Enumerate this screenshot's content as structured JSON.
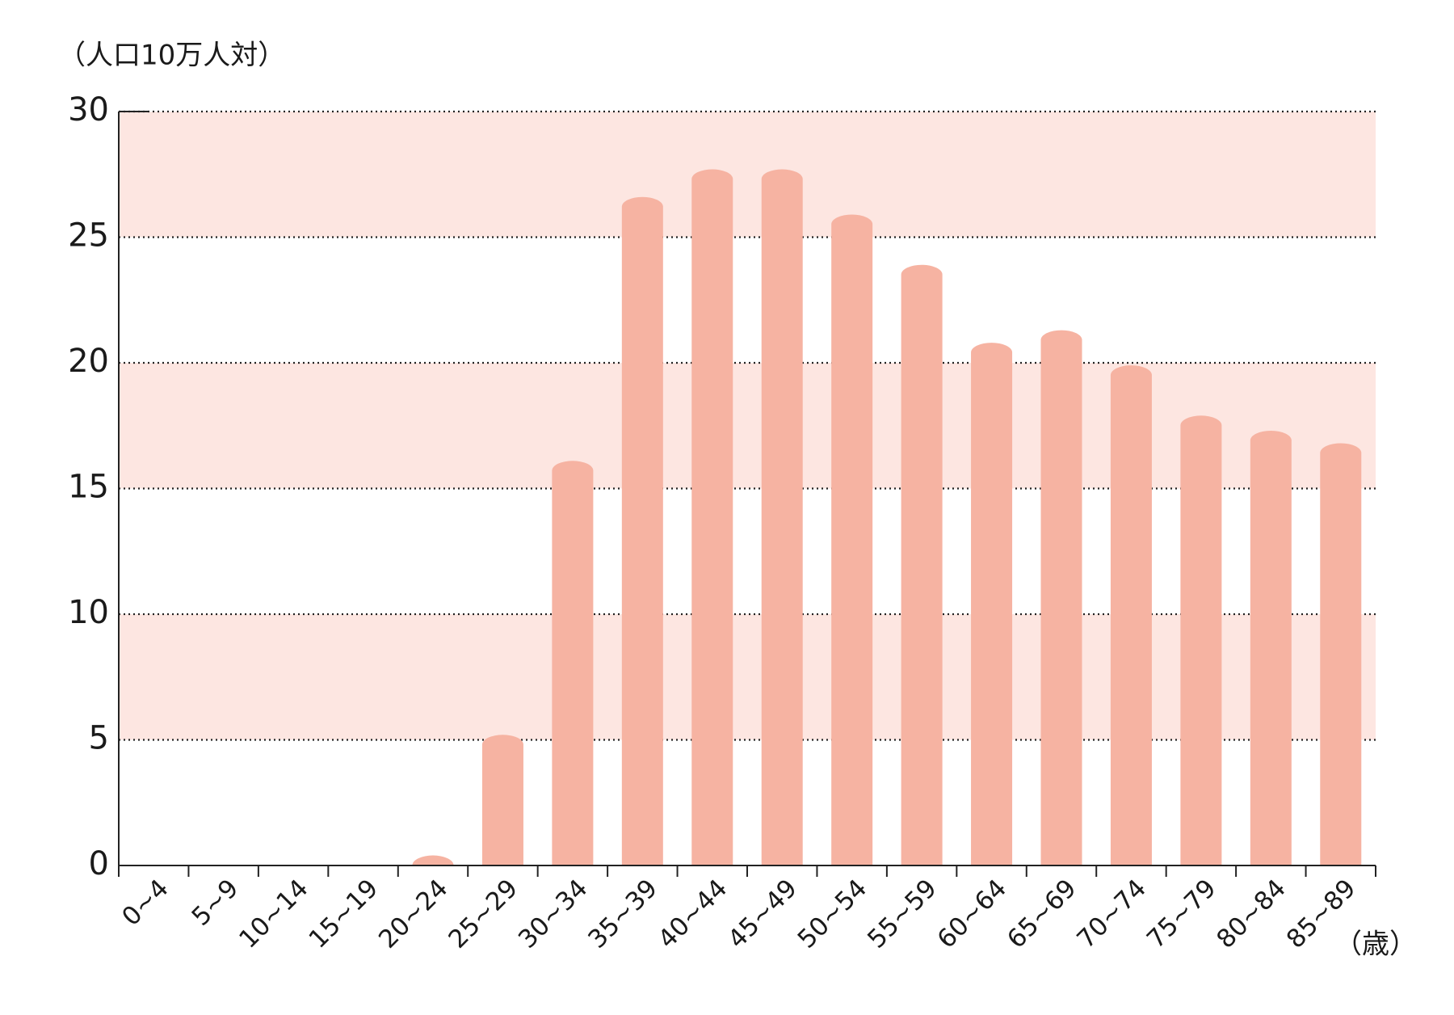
{
  "chart_data": {
    "type": "bar",
    "y_axis_label": "（人口10万人対）",
    "x_axis_label": "（歳）",
    "categories": [
      "0~4",
      "5~9",
      "10~14",
      "15~19",
      "20~24",
      "25~29",
      "30~34",
      "35~39",
      "40~44",
      "45~49",
      "50~54",
      "55~59",
      "60~64",
      "65~69",
      "70~74",
      "75~79",
      "80~84",
      "85~89"
    ],
    "values": [
      0,
      0,
      0,
      0,
      0.4,
      5.2,
      16.1,
      26.6,
      27.7,
      27.7,
      25.9,
      23.9,
      20.8,
      21.3,
      19.9,
      17.9,
      17.3,
      16.8
    ],
    "color": "#f6b3a2",
    "band_color": "#fde6e1",
    "ylim": [
      0,
      30
    ],
    "yticks": [
      0,
      5,
      10,
      15,
      20,
      25,
      30
    ],
    "grid": true
  }
}
